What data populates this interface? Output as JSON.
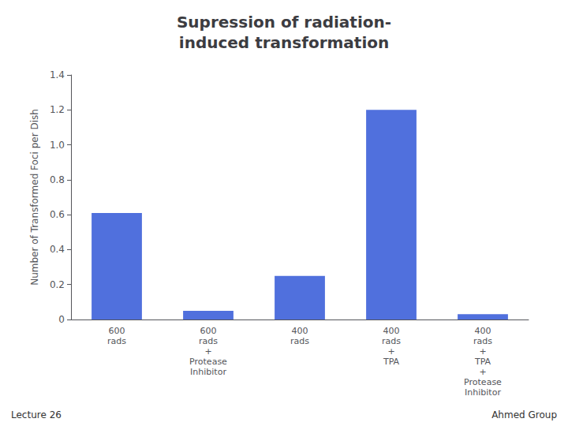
{
  "chart_data": {
    "type": "bar",
    "title": "Supression of radiation-\ninduced transformation",
    "categories": [
      "600\nrads",
      "600\nrads\n+\nProtease\nInhibitor",
      "400\nrads",
      "400\nrads\n+\nTPA",
      "400\nrads\n+\nTPA\n+\nProtease\nInhibitor"
    ],
    "values": [
      0.61,
      0.05,
      0.25,
      1.2,
      0.03
    ],
    "ylabel": "Number of Transformed Foci per Dish",
    "ylim": [
      0,
      1.4
    ],
    "yticks": [
      0,
      0.2,
      0.4,
      0.6,
      0.8,
      {
        "value": 1.0,
        "label": "1.0"
      },
      1.2,
      1.4
    ],
    "grid": false,
    "annotations": [
      "Lecture 26",
      "Ahmed Group"
    ]
  }
}
